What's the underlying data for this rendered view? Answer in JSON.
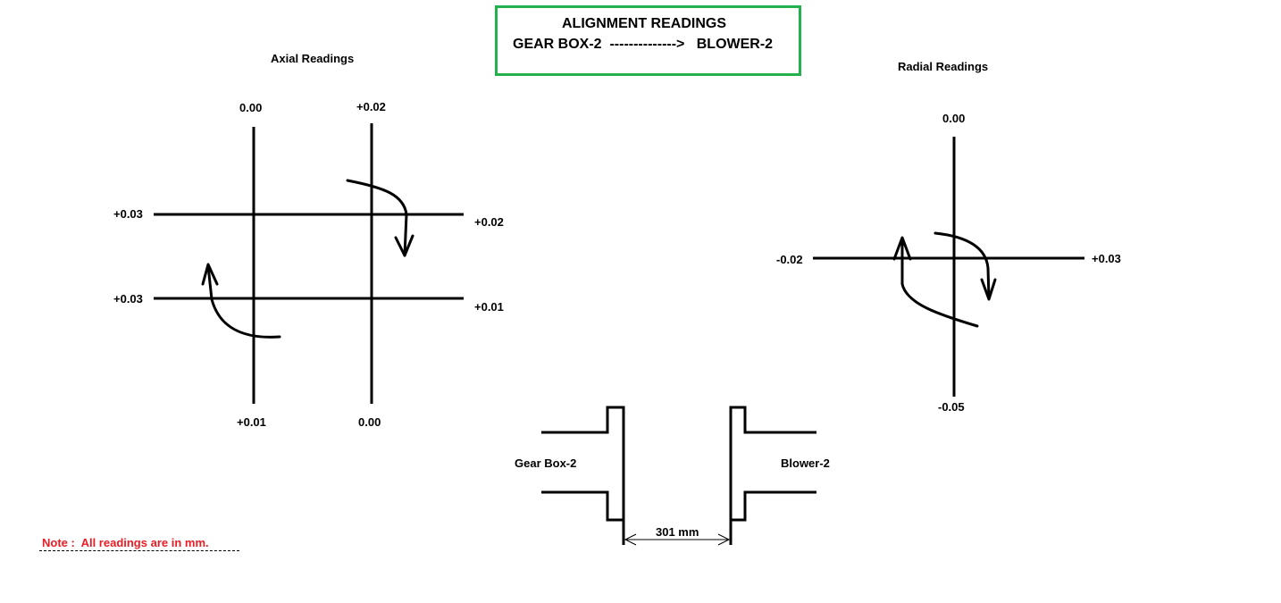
{
  "title": {
    "line1": "ALIGNMENT READINGS",
    "line2": "GEAR BOX-2  -------------->   BLOWER-2"
  },
  "axial": {
    "heading": "Axial Readings",
    "top_left": "0.00",
    "top_right": "+0.02",
    "left_top": "+0.03",
    "left_bottom": "+0.03",
    "right_top": "+0.02",
    "right_bottom": "+0.01",
    "bottom_left": "+0.01",
    "bottom_right": "0.00"
  },
  "radial": {
    "heading": "Radial Readings",
    "top": "0.00",
    "left": "-0.02",
    "right": "+0.03",
    "bottom": "-0.05"
  },
  "coupling": {
    "left_label": "Gear Box-2",
    "right_label": "Blower-2",
    "gap": "301 mm"
  },
  "note": "Note :  All readings are in mm.",
  "colors": {
    "title_border": "#22b14c",
    "note_text": "#ed1c24"
  }
}
